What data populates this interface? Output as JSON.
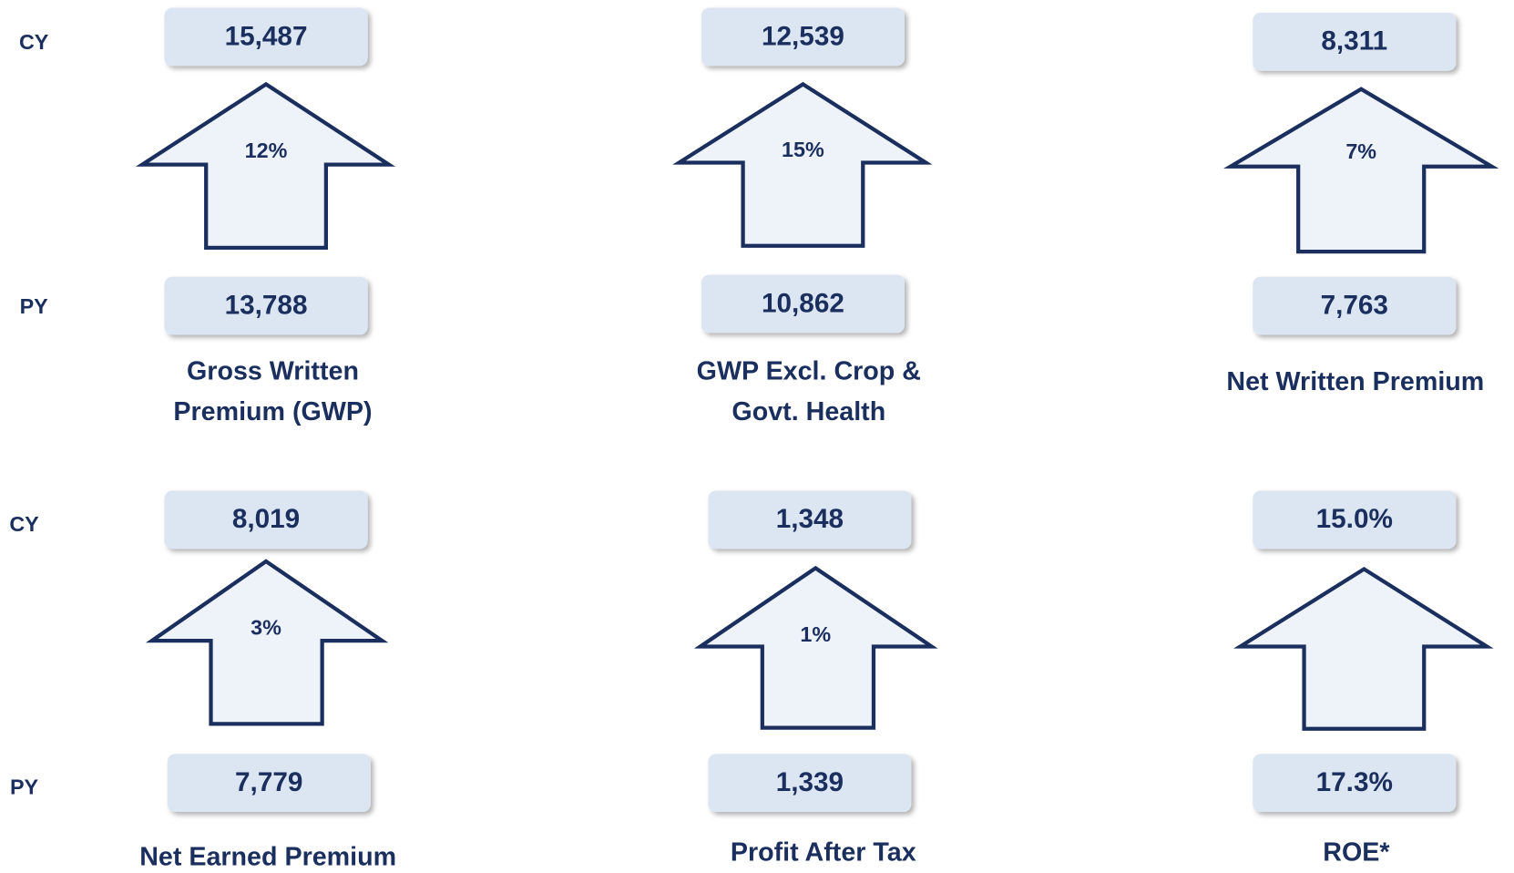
{
  "rows": [
    {
      "cy_label": "CY",
      "py_label": "PY",
      "metrics": [
        {
          "cy": "15,487",
          "py": "13,788",
          "change": "12%",
          "label": [
            "Gross Written",
            "Premium (GWP)"
          ]
        },
        {
          "cy": "12,539",
          "py": "10,862",
          "change": "15%",
          "label": [
            "GWP Excl. Crop &",
            "Govt. Health"
          ]
        },
        {
          "cy": "8,311",
          "py": "7,763",
          "change": "7%",
          "label": [
            "Net Written Premium"
          ]
        }
      ]
    },
    {
      "cy_label": "CY",
      "py_label": "PY",
      "metrics": [
        {
          "cy": "8,019",
          "py": "7,779",
          "change": "3%",
          "label": [
            "Net Earned Premium"
          ]
        },
        {
          "cy": "1,348",
          "py": "1,339",
          "change": "1%",
          "label": [
            "Profit After Tax"
          ]
        },
        {
          "cy": "15.0%",
          "py": "17.3%",
          "label": [
            "ROE*"
          ]
        }
      ]
    }
  ]
}
